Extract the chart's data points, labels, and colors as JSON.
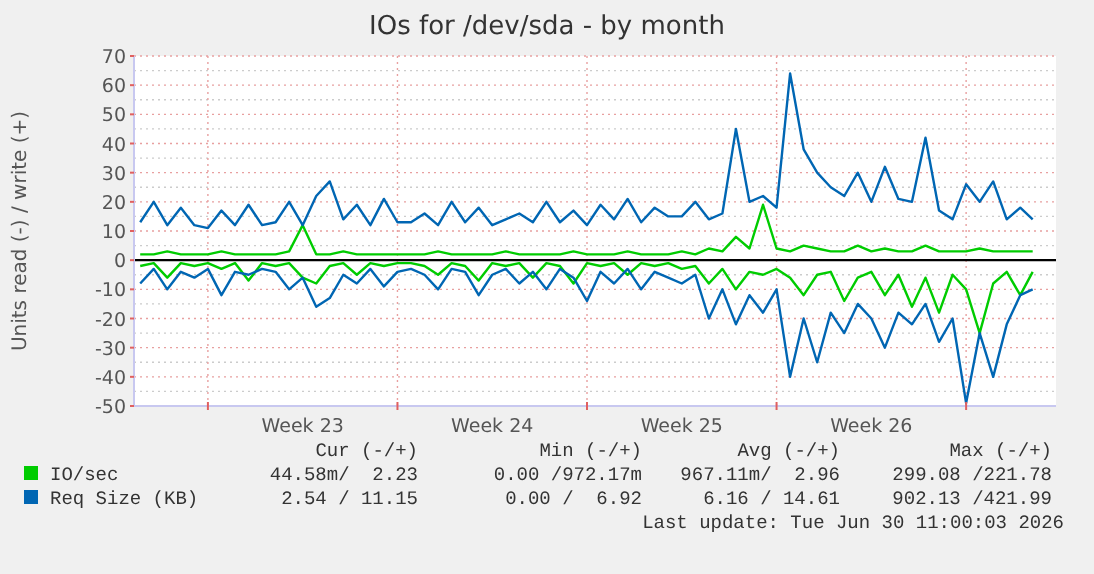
{
  "chart_data": {
    "type": "line",
    "title": "IOs for /dev/sda - by month",
    "ylabel": "Units read (-) / write (+)",
    "x": [
      "2026-05-28T12:00",
      "2026-05-29T00:00",
      "2026-05-29T12:00",
      "2026-05-30T00:00",
      "2026-05-30T12:00",
      "2026-05-31T00:00",
      "2026-05-31T12:00",
      "2026-06-01T00:00",
      "2026-06-01T12:00",
      "2026-06-02T00:00",
      "2026-06-02T12:00",
      "2026-06-03T00:00",
      "2026-06-03T12:00",
      "2026-06-04T00:00",
      "2026-06-04T12:00",
      "2026-06-05T00:00",
      "2026-06-05T12:00",
      "2026-06-06T00:00",
      "2026-06-06T12:00",
      "2026-06-07T00:00",
      "2026-06-07T12:00",
      "2026-06-08T00:00",
      "2026-06-08T12:00",
      "2026-06-09T00:00",
      "2026-06-09T12:00",
      "2026-06-10T00:00",
      "2026-06-10T12:00",
      "2026-06-11T00:00",
      "2026-06-11T12:00",
      "2026-06-12T00:00",
      "2026-06-12T12:00",
      "2026-06-13T00:00",
      "2026-06-13T12:00",
      "2026-06-14T00:00",
      "2026-06-14T12:00",
      "2026-06-15T00:00",
      "2026-06-15T12:00",
      "2026-06-16T00:00",
      "2026-06-16T12:00",
      "2026-06-17T00:00",
      "2026-06-17T12:00",
      "2026-06-18T00:00",
      "2026-06-18T12:00",
      "2026-06-19T00:00",
      "2026-06-19T12:00",
      "2026-06-20T00:00",
      "2026-06-20T12:00",
      "2026-06-21T00:00",
      "2026-06-21T12:00",
      "2026-06-22T00:00",
      "2026-06-22T12:00",
      "2026-06-23T00:00",
      "2026-06-23T12:00",
      "2026-06-24T00:00",
      "2026-06-24T12:00",
      "2026-06-25T00:00",
      "2026-06-25T12:00",
      "2026-06-26T00:00",
      "2026-06-26T12:00",
      "2026-06-27T00:00",
      "2026-06-27T12:00",
      "2026-06-28T00:00",
      "2026-06-28T12:00",
      "2026-06-29T00:00",
      "2026-06-29T12:00",
      "2026-06-30T00:00",
      "2026-06-30T11:00"
    ],
    "series": [
      {
        "name": "IO/sec",
        "color": "#00cc00",
        "values": [
          2,
          2,
          3,
          2,
          2,
          2,
          3,
          2,
          2,
          2,
          2,
          3,
          12,
          2,
          2,
          3,
          2,
          2,
          2,
          2,
          2,
          2,
          3,
          2,
          2,
          2,
          2,
          3,
          2,
          2,
          2,
          2,
          3,
          2,
          2,
          2,
          3,
          2,
          2,
          2,
          3,
          2,
          4,
          3,
          8,
          4,
          19,
          4,
          3,
          5,
          4,
          3,
          3,
          5,
          3,
          4,
          3,
          3,
          5,
          3,
          3,
          3,
          4,
          3,
          3,
          3,
          3
        ]
      },
      {
        "color": "#00cc00",
        "values": [
          -2,
          -1,
          -6,
          -1,
          -2,
          -1,
          -3,
          -1,
          -7,
          -1,
          -2,
          -1,
          -6,
          -8,
          -2,
          -1,
          -5,
          -1,
          -2,
          -1,
          -1,
          -2,
          -5,
          -1,
          -2,
          -7,
          -1,
          -2,
          -1,
          -6,
          -1,
          -2,
          -8,
          -1,
          -2,
          -1,
          -5,
          -1,
          -2,
          -1,
          -3,
          -2,
          -8,
          -3,
          -10,
          -4,
          -5,
          -3,
          -6,
          -12,
          -5,
          -4,
          -14,
          -6,
          -4,
          -12,
          -5,
          -16,
          -6,
          -18,
          -5,
          -10,
          -25,
          -8,
          -4,
          -12,
          -4
        ]
      },
      {
        "name": "Req Size (KB)",
        "color": "#0066b3",
        "values": [
          13,
          20,
          12,
          18,
          12,
          11,
          17,
          12,
          19,
          12,
          13,
          20,
          12,
          22,
          27,
          14,
          19,
          12,
          21,
          13,
          13,
          16,
          12,
          20,
          13,
          18,
          12,
          14,
          16,
          13,
          20,
          13,
          17,
          12,
          19,
          14,
          21,
          13,
          18,
          15,
          15,
          20,
          14,
          16,
          45,
          20,
          22,
          18,
          64,
          38,
          30,
          25,
          22,
          30,
          20,
          32,
          21,
          20,
          42,
          17,
          14,
          26,
          20,
          27,
          14,
          18,
          14
        ]
      },
      {
        "color": "#0066b3",
        "values": [
          -8,
          -3,
          -10,
          -4,
          -6,
          -3,
          -12,
          -4,
          -5,
          -3,
          -4,
          -10,
          -6,
          -16,
          -13,
          -5,
          -8,
          -3,
          -9,
          -4,
          -3,
          -5,
          -10,
          -3,
          -4,
          -12,
          -5,
          -3,
          -8,
          -4,
          -10,
          -3,
          -6,
          -14,
          -4,
          -8,
          -3,
          -10,
          -4,
          -6,
          -8,
          -5,
          -20,
          -10,
          -22,
          -12,
          -18,
          -10,
          -40,
          -20,
          -35,
          -18,
          -25,
          -15,
          -20,
          -30,
          -18,
          -22,
          -15,
          -28,
          -20,
          -49,
          -25,
          -40,
          -22,
          -12,
          -10
        ]
      }
    ],
    "xlim": [
      "2026-05-28T06:30",
      "2026-07-01T07:40"
    ],
    "xticks": [
      {
        "value": "2026-05-31T00:00",
        "label": null
      },
      {
        "value": "2026-06-03T12:00",
        "label": "Week 23"
      },
      {
        "value": "2026-06-07T00:00",
        "label": null
      },
      {
        "value": "2026-06-10T12:00",
        "label": "Week 24"
      },
      {
        "value": "2026-06-14T00:00",
        "label": null
      },
      {
        "value": "2026-06-17T12:00",
        "label": "Week 25"
      },
      {
        "value": "2026-06-21T00:00",
        "label": null
      },
      {
        "value": "2026-06-24T12:00",
        "label": "Week 26"
      },
      {
        "value": "2026-06-28T00:00",
        "label": null
      }
    ],
    "ylim": [
      -50,
      70
    ],
    "yticks": [
      -50,
      -40,
      -30,
      -20,
      -10,
      0,
      10,
      20,
      30,
      40,
      50,
      60,
      70
    ],
    "grid": true,
    "legend": "bottom",
    "ref_lines": [
      {
        "axis": "y",
        "value": 0,
        "color": "#000000"
      }
    ],
    "annotations": [
      "Cur (-/+)",
      "Min (-/+)",
      "Avg (-/+)",
      "Max (-/+)",
      "44.58m/  2.23",
      "0.00 /972.17m",
      "967.11m/  2.96",
      "299.08 /221.78",
      "2.54 / 11.15",
      "0.00 /  6.92",
      "6.16 / 14.61",
      "902.13 /421.99",
      "Last update: Tue Jun 30 11:00:03 2026"
    ]
  }
}
